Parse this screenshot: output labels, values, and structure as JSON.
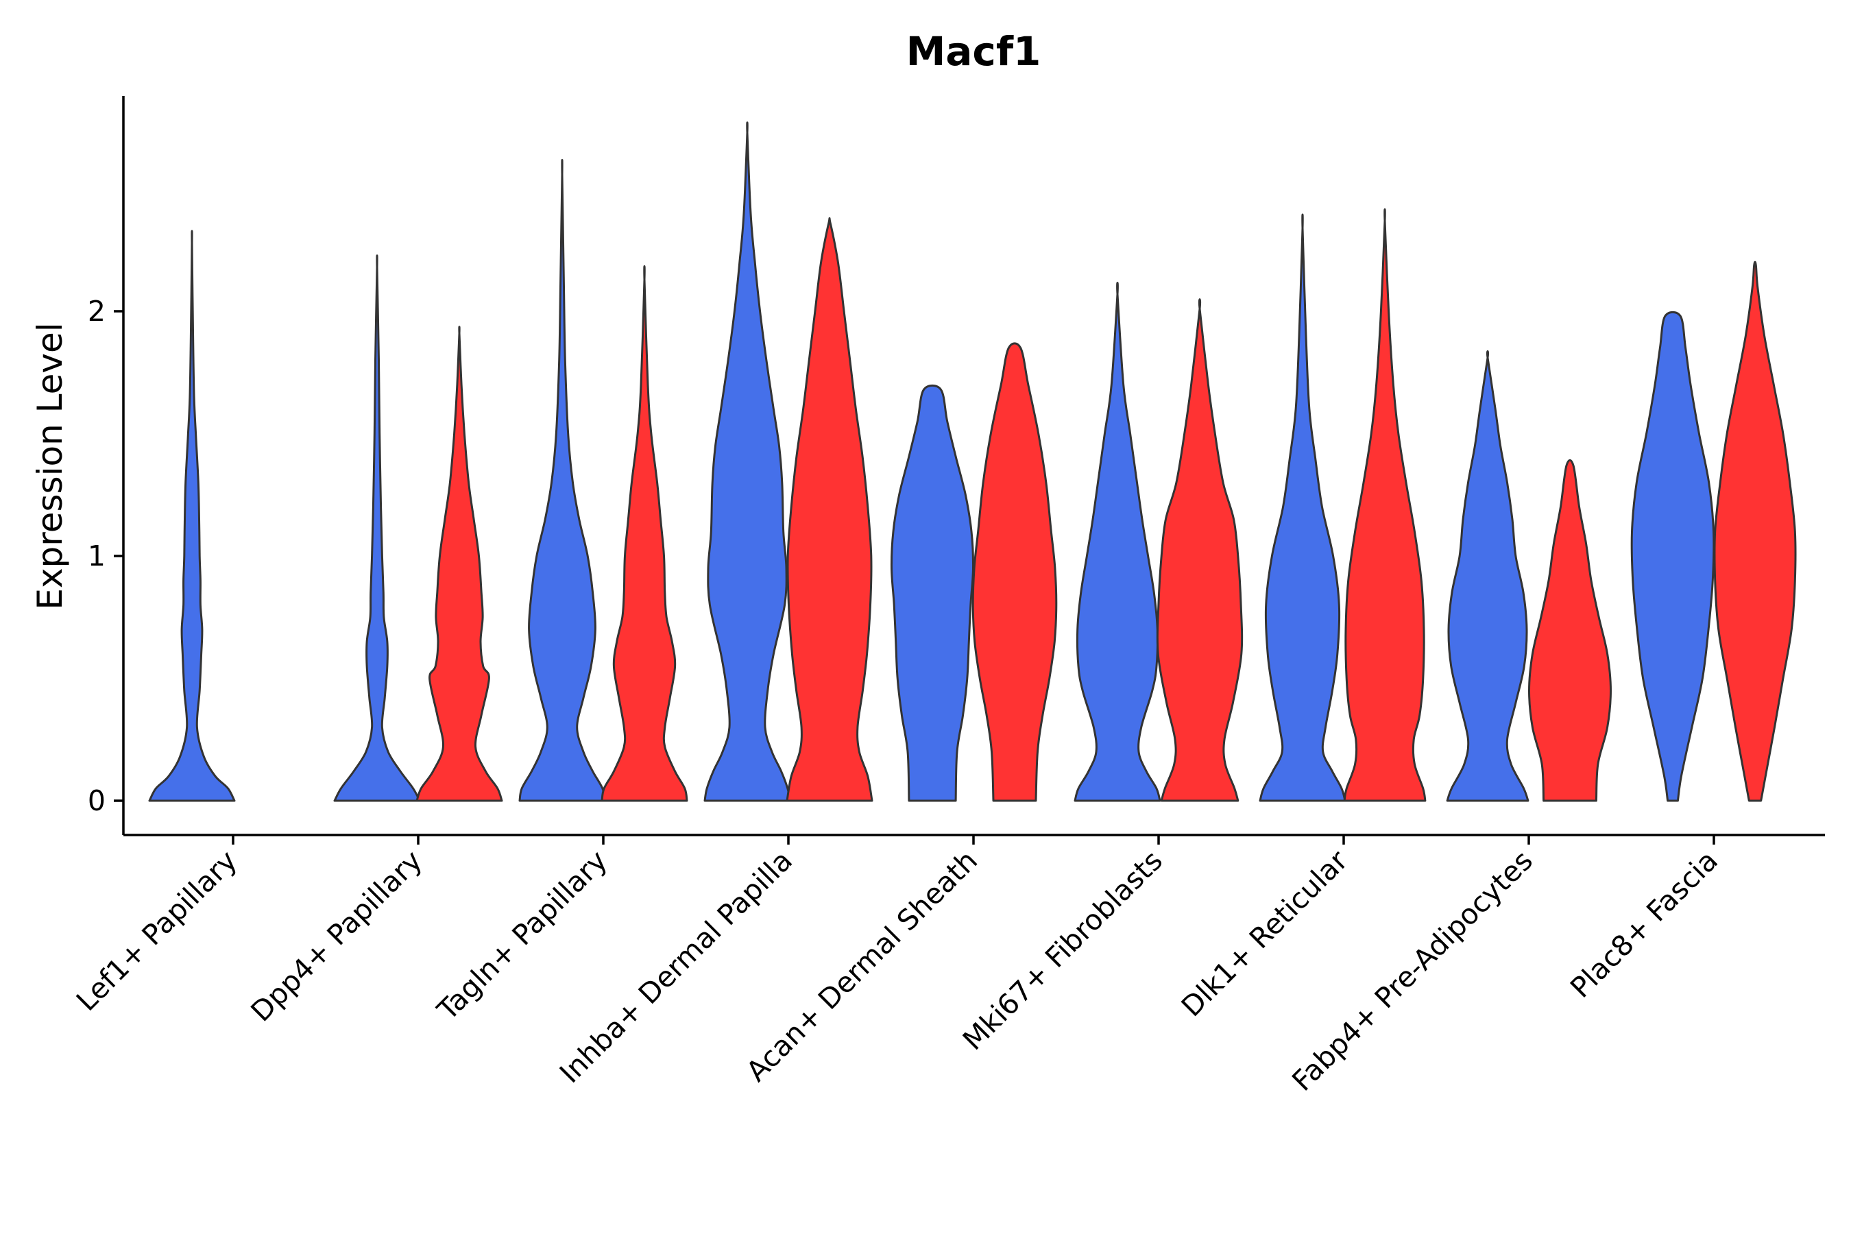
{
  "chart_data": {
    "type": "violin",
    "title": "Macf1",
    "xlabel": "",
    "ylabel": "Expression Level",
    "ylim": [
      -0.14,
      2.88
    ],
    "yticks": [
      0,
      1,
      2
    ],
    "grid": false,
    "legend": "none",
    "colors": {
      "group1": "#4570EA",
      "group2": "#FF3333",
      "outline": "#333333"
    },
    "categories": [
      "Lef1+ Papillary",
      "Dpp4+ Papillary",
      "Tagln+ Papillary",
      "Inhba+ Dermal Papilla",
      "Acan+ Dermal Sheath",
      "Mki67+ Fibroblasts",
      "Dlk1+ Reticular",
      "Fabp4+ Pre-Adipocytes",
      "Plac8+ Fascia"
    ],
    "violins": [
      {
        "category": 0,
        "group": 1,
        "max": 2.28,
        "profile": [
          [
            0,
            1.0
          ],
          [
            0.05,
            0.85
          ],
          [
            0.1,
            0.55
          ],
          [
            0.18,
            0.28
          ],
          [
            0.3,
            0.12
          ],
          [
            0.45,
            0.18
          ],
          [
            0.6,
            0.22
          ],
          [
            0.7,
            0.24
          ],
          [
            0.8,
            0.2
          ],
          [
            0.9,
            0.2
          ],
          [
            1.0,
            0.18
          ],
          [
            1.15,
            0.17
          ],
          [
            1.3,
            0.15
          ],
          [
            1.5,
            0.09
          ],
          [
            1.65,
            0.05
          ],
          [
            1.9,
            0.025
          ],
          [
            2.28,
            0
          ]
        ]
      },
      {
        "category": 1,
        "group": 1,
        "max": 2.18,
        "profile": [
          [
            0,
            1.0
          ],
          [
            0.05,
            0.85
          ],
          [
            0.12,
            0.55
          ],
          [
            0.2,
            0.26
          ],
          [
            0.3,
            0.12
          ],
          [
            0.42,
            0.18
          ],
          [
            0.55,
            0.24
          ],
          [
            0.65,
            0.24
          ],
          [
            0.75,
            0.16
          ],
          [
            0.85,
            0.15
          ],
          [
            1.0,
            0.12
          ],
          [
            1.2,
            0.09
          ],
          [
            1.5,
            0.06
          ],
          [
            1.8,
            0.04
          ],
          [
            2.18,
            0
          ]
        ]
      },
      {
        "category": 1,
        "group": 2,
        "max": 1.91,
        "profile": [
          [
            0,
            1.0
          ],
          [
            0.05,
            0.9
          ],
          [
            0.12,
            0.62
          ],
          [
            0.22,
            0.38
          ],
          [
            0.35,
            0.52
          ],
          [
            0.5,
            0.7
          ],
          [
            0.55,
            0.56
          ],
          [
            0.65,
            0.5
          ],
          [
            0.75,
            0.55
          ],
          [
            0.85,
            0.52
          ],
          [
            1.0,
            0.46
          ],
          [
            1.15,
            0.34
          ],
          [
            1.3,
            0.22
          ],
          [
            1.5,
            0.12
          ],
          [
            1.7,
            0.05
          ],
          [
            1.91,
            0
          ]
        ]
      },
      {
        "category": 2,
        "group": 1,
        "max": 2.56,
        "profile": [
          [
            0,
            1.0
          ],
          [
            0.05,
            0.95
          ],
          [
            0.12,
            0.72
          ],
          [
            0.2,
            0.5
          ],
          [
            0.3,
            0.35
          ],
          [
            0.42,
            0.5
          ],
          [
            0.55,
            0.68
          ],
          [
            0.7,
            0.78
          ],
          [
            0.85,
            0.72
          ],
          [
            1.0,
            0.6
          ],
          [
            1.15,
            0.4
          ],
          [
            1.3,
            0.25
          ],
          [
            1.5,
            0.14
          ],
          [
            1.8,
            0.07
          ],
          [
            2.1,
            0.04
          ],
          [
            2.56,
            0
          ]
        ]
      },
      {
        "category": 2,
        "group": 2,
        "max": 2.13,
        "profile": [
          [
            0,
            1.0
          ],
          [
            0.05,
            0.95
          ],
          [
            0.12,
            0.72
          ],
          [
            0.22,
            0.48
          ],
          [
            0.3,
            0.48
          ],
          [
            0.42,
            0.6
          ],
          [
            0.55,
            0.72
          ],
          [
            0.65,
            0.65
          ],
          [
            0.75,
            0.52
          ],
          [
            0.85,
            0.48
          ],
          [
            1.0,
            0.46
          ],
          [
            1.15,
            0.38
          ],
          [
            1.3,
            0.3
          ],
          [
            1.5,
            0.16
          ],
          [
            1.7,
            0.08
          ],
          [
            2.13,
            0
          ]
        ]
      },
      {
        "category": 3,
        "group": 1,
        "max": 2.73,
        "profile": [
          [
            0,
            1.0
          ],
          [
            0.05,
            0.95
          ],
          [
            0.12,
            0.8
          ],
          [
            0.2,
            0.58
          ],
          [
            0.3,
            0.42
          ],
          [
            0.45,
            0.48
          ],
          [
            0.6,
            0.62
          ],
          [
            0.8,
            0.88
          ],
          [
            0.95,
            0.92
          ],
          [
            1.1,
            0.85
          ],
          [
            1.3,
            0.82
          ],
          [
            1.45,
            0.75
          ],
          [
            1.6,
            0.62
          ],
          [
            1.8,
            0.45
          ],
          [
            2.0,
            0.3
          ],
          [
            2.2,
            0.18
          ],
          [
            2.4,
            0.08
          ],
          [
            2.73,
            0
          ]
        ]
      },
      {
        "category": 3,
        "group": 2,
        "max": 2.36,
        "profile": [
          [
            0,
            1.0
          ],
          [
            0.1,
            0.9
          ],
          [
            0.2,
            0.7
          ],
          [
            0.3,
            0.66
          ],
          [
            0.45,
            0.78
          ],
          [
            0.6,
            0.88
          ],
          [
            0.8,
            0.96
          ],
          [
            1.0,
            0.98
          ],
          [
            1.2,
            0.9
          ],
          [
            1.4,
            0.78
          ],
          [
            1.6,
            0.62
          ],
          [
            1.8,
            0.48
          ],
          [
            2.0,
            0.34
          ],
          [
            2.2,
            0.2
          ],
          [
            2.36,
            0.02
          ]
        ]
      },
      {
        "category": 4,
        "group": 1,
        "max": 1.68,
        "profile": [
          [
            0,
            0.55
          ],
          [
            0.2,
            0.58
          ],
          [
            0.35,
            0.72
          ],
          [
            0.5,
            0.82
          ],
          [
            0.65,
            0.86
          ],
          [
            0.8,
            0.9
          ],
          [
            0.95,
            0.96
          ],
          [
            1.1,
            0.92
          ],
          [
            1.25,
            0.78
          ],
          [
            1.4,
            0.56
          ],
          [
            1.55,
            0.35
          ],
          [
            1.68,
            0.2
          ]
        ]
      },
      {
        "category": 4,
        "group": 2,
        "max": 1.85,
        "profile": [
          [
            0,
            0.5
          ],
          [
            0.2,
            0.54
          ],
          [
            0.35,
            0.66
          ],
          [
            0.5,
            0.82
          ],
          [
            0.65,
            0.94
          ],
          [
            0.8,
            0.98
          ],
          [
            0.95,
            0.95
          ],
          [
            1.1,
            0.86
          ],
          [
            1.3,
            0.74
          ],
          [
            1.5,
            0.56
          ],
          [
            1.7,
            0.32
          ],
          [
            1.85,
            0.14
          ]
        ]
      },
      {
        "category": 5,
        "group": 1,
        "max": 2.07,
        "profile": [
          [
            0,
            1.0
          ],
          [
            0.05,
            0.92
          ],
          [
            0.12,
            0.68
          ],
          [
            0.2,
            0.5
          ],
          [
            0.3,
            0.56
          ],
          [
            0.45,
            0.82
          ],
          [
            0.55,
            0.92
          ],
          [
            0.7,
            0.94
          ],
          [
            0.85,
            0.86
          ],
          [
            1.0,
            0.72
          ],
          [
            1.15,
            0.58
          ],
          [
            1.3,
            0.46
          ],
          [
            1.5,
            0.3
          ],
          [
            1.7,
            0.14
          ],
          [
            2.07,
            0
          ]
        ]
      },
      {
        "category": 5,
        "group": 2,
        "max": 2.01,
        "profile": [
          [
            0,
            0.9
          ],
          [
            0.05,
            0.82
          ],
          [
            0.15,
            0.6
          ],
          [
            0.25,
            0.58
          ],
          [
            0.4,
            0.78
          ],
          [
            0.6,
            0.98
          ],
          [
            0.8,
            0.97
          ],
          [
            1.0,
            0.9
          ],
          [
            1.15,
            0.8
          ],
          [
            1.3,
            0.55
          ],
          [
            1.5,
            0.36
          ],
          [
            1.7,
            0.2
          ],
          [
            2.01,
            0
          ]
        ]
      },
      {
        "category": 6,
        "group": 1,
        "max": 2.34,
        "profile": [
          [
            0,
            1.0
          ],
          [
            0.05,
            0.92
          ],
          [
            0.12,
            0.7
          ],
          [
            0.2,
            0.48
          ],
          [
            0.3,
            0.54
          ],
          [
            0.45,
            0.7
          ],
          [
            0.6,
            0.82
          ],
          [
            0.8,
            0.86
          ],
          [
            1.0,
            0.72
          ],
          [
            1.2,
            0.46
          ],
          [
            1.4,
            0.3
          ],
          [
            1.6,
            0.16
          ],
          [
            1.9,
            0.08
          ],
          [
            2.34,
            0
          ]
        ]
      },
      {
        "category": 6,
        "group": 2,
        "max": 2.37,
        "profile": [
          [
            0,
            0.95
          ],
          [
            0.05,
            0.9
          ],
          [
            0.15,
            0.7
          ],
          [
            0.25,
            0.68
          ],
          [
            0.35,
            0.82
          ],
          [
            0.5,
            0.9
          ],
          [
            0.7,
            0.92
          ],
          [
            0.9,
            0.86
          ],
          [
            1.1,
            0.7
          ],
          [
            1.3,
            0.5
          ],
          [
            1.5,
            0.32
          ],
          [
            1.7,
            0.2
          ],
          [
            2.0,
            0.09
          ],
          [
            2.37,
            0
          ]
        ]
      },
      {
        "category": 7,
        "group": 1,
        "max": 1.81,
        "profile": [
          [
            0,
            0.95
          ],
          [
            0.05,
            0.85
          ],
          [
            0.15,
            0.55
          ],
          [
            0.25,
            0.46
          ],
          [
            0.4,
            0.66
          ],
          [
            0.55,
            0.86
          ],
          [
            0.7,
            0.92
          ],
          [
            0.85,
            0.84
          ],
          [
            1.0,
            0.66
          ],
          [
            1.15,
            0.58
          ],
          [
            1.3,
            0.46
          ],
          [
            1.45,
            0.3
          ],
          [
            1.6,
            0.18
          ],
          [
            1.81,
            0
          ]
        ]
      },
      {
        "category": 7,
        "group": 2,
        "max": 1.37,
        "profile": [
          [
            0,
            0.62
          ],
          [
            0.15,
            0.66
          ],
          [
            0.3,
            0.88
          ],
          [
            0.45,
            0.96
          ],
          [
            0.6,
            0.88
          ],
          [
            0.75,
            0.68
          ],
          [
            0.9,
            0.5
          ],
          [
            1.05,
            0.38
          ],
          [
            1.2,
            0.22
          ],
          [
            1.37,
            0.08
          ]
        ]
      },
      {
        "category": 8,
        "group": 1,
        "max": 1.98,
        "profile": [
          [
            0,
            0.12
          ],
          [
            0.1,
            0.2
          ],
          [
            0.3,
            0.45
          ],
          [
            0.5,
            0.7
          ],
          [
            0.7,
            0.84
          ],
          [
            0.9,
            0.94
          ],
          [
            1.1,
            0.96
          ],
          [
            1.3,
            0.85
          ],
          [
            1.5,
            0.62
          ],
          [
            1.7,
            0.42
          ],
          [
            1.85,
            0.3
          ],
          [
            1.98,
            0.18
          ]
        ]
      },
      {
        "category": 8,
        "group": 2,
        "max": 2.19,
        "profile": [
          [
            0,
            0.14
          ],
          [
            0.15,
            0.3
          ],
          [
            0.3,
            0.46
          ],
          [
            0.5,
            0.66
          ],
          [
            0.7,
            0.86
          ],
          [
            0.9,
            0.94
          ],
          [
            1.1,
            0.94
          ],
          [
            1.3,
            0.82
          ],
          [
            1.5,
            0.66
          ],
          [
            1.7,
            0.44
          ],
          [
            1.9,
            0.22
          ],
          [
            2.1,
            0.06
          ],
          [
            2.19,
            0.02
          ]
        ]
      }
    ]
  }
}
